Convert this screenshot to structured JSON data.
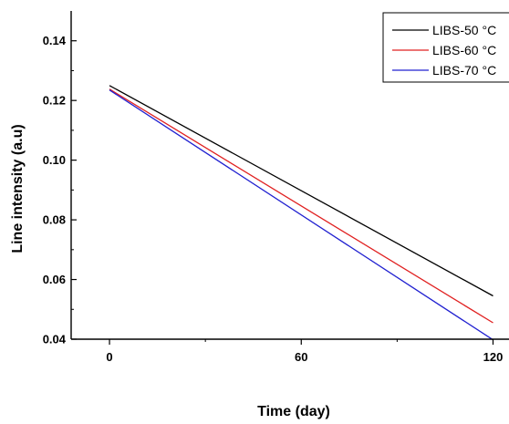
{
  "chart_data": {
    "type": "line",
    "title": "",
    "xlabel": "Time (day)",
    "ylabel": "Line intensity (a.u)",
    "xlim": [
      -12,
      125
    ],
    "ylim": [
      0.04,
      0.15
    ],
    "x_ticks": [
      0,
      60,
      120
    ],
    "x_tick_labels": [
      "0",
      "60",
      "120"
    ],
    "y_ticks": [
      0.04,
      0.06,
      0.08,
      0.1,
      0.12,
      0.14
    ],
    "y_tick_labels": [
      "0.04",
      "0.06",
      "0.08",
      "0.10",
      "0.12",
      "0.14"
    ],
    "grid": false,
    "legend_position": "top-right",
    "series": [
      {
        "name": "LIBS-50 °C",
        "color": "#000000",
        "x": [
          0,
          120
        ],
        "y": [
          0.125,
          0.0545
        ]
      },
      {
        "name": "LIBS-60 °C",
        "color": "#e02020",
        "x": [
          0,
          120
        ],
        "y": [
          0.1238,
          0.0455
        ]
      },
      {
        "name": "LIBS-70 °C",
        "color": "#2020d0",
        "x": [
          0,
          120
        ],
        "y": [
          0.1235,
          0.0398
        ]
      }
    ]
  }
}
